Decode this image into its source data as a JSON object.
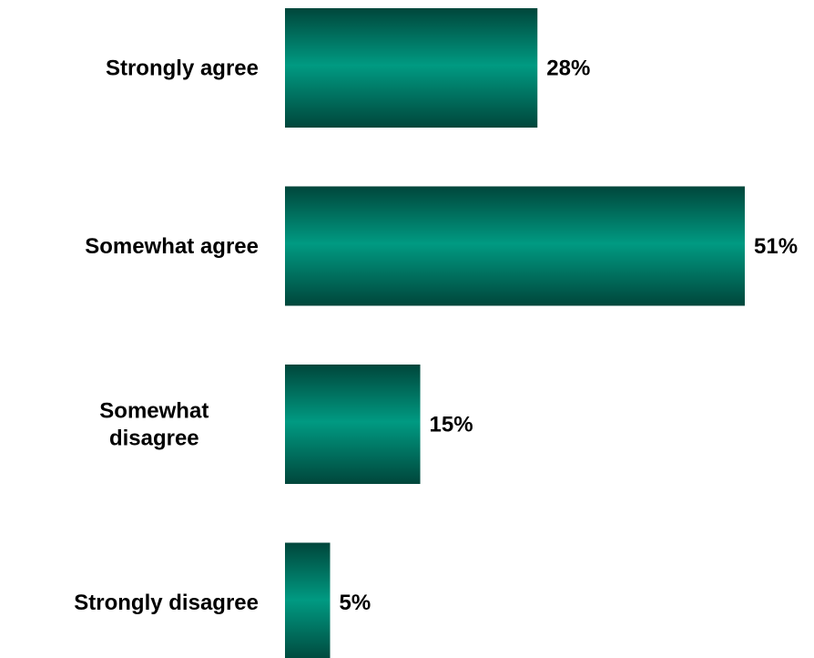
{
  "chart_data": {
    "type": "bar",
    "orientation": "horizontal",
    "categories": [
      [
        "Strongly agree"
      ],
      [
        "Somewhat agree"
      ],
      [
        "Somewhat",
        "disagree"
      ],
      [
        "Strongly disagree"
      ]
    ],
    "values": [
      28,
      51,
      15,
      5
    ],
    "value_labels": [
      "28%",
      "51%",
      "15%",
      "5%"
    ],
    "xlim": [
      0,
      51
    ],
    "title": "",
    "xlabel": "",
    "ylabel": "",
    "grid": false,
    "legend": "none",
    "colors": {
      "bar_center": "#009a82",
      "bar_edge": "#00463b"
    }
  }
}
